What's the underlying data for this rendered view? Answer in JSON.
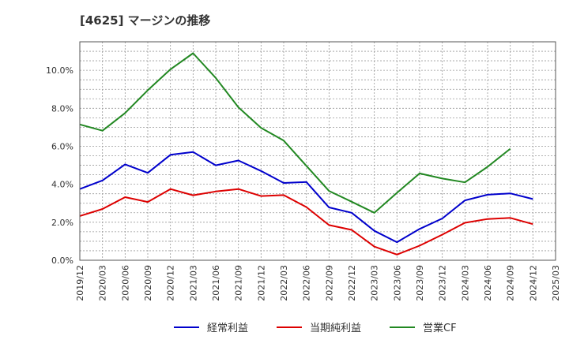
{
  "chart_data": {
    "type": "line",
    "title": "[4625]  マージンの推移",
    "xlabel": "",
    "ylabel": "",
    "ylim": [
      0,
      11.5
    ],
    "yticks": [
      0,
      2,
      4,
      6,
      8,
      10
    ],
    "ytick_labels": [
      "0.0%",
      "2.0%",
      "4.0%",
      "6.0%",
      "8.0%",
      "10.0%"
    ],
    "x": [
      "2019/12",
      "2020/03",
      "2020/06",
      "2020/09",
      "2020/12",
      "2021/03",
      "2021/06",
      "2021/09",
      "2021/12",
      "2022/03",
      "2022/06",
      "2022/09",
      "2022/12",
      "2023/03",
      "2023/06",
      "2023/09",
      "2023/12",
      "2024/03",
      "2024/06",
      "2024/09",
      "2024/12",
      "2025/03"
    ],
    "grid": true,
    "legend": "bottom",
    "series": [
      {
        "name": "経常利益",
        "color": "#0000cc",
        "values": [
          3.75,
          4.2,
          5.05,
          4.6,
          5.55,
          5.7,
          5.0,
          5.25,
          4.7,
          4.07,
          4.12,
          2.78,
          2.5,
          1.55,
          0.95,
          1.65,
          2.2,
          3.15,
          3.45,
          3.52,
          3.22,
          null
        ]
      },
      {
        "name": "当期純利益",
        "color": "#dd0000",
        "values": [
          2.33,
          2.7,
          3.32,
          3.07,
          3.75,
          3.42,
          3.62,
          3.75,
          3.38,
          3.43,
          2.8,
          1.85,
          1.6,
          0.72,
          0.3,
          0.77,
          1.35,
          1.97,
          2.17,
          2.23,
          1.9,
          null
        ]
      },
      {
        "name": "営業CF",
        "color": "#228822",
        "values": [
          7.15,
          6.82,
          7.75,
          8.95,
          10.05,
          10.9,
          9.6,
          8.05,
          6.97,
          6.3,
          4.97,
          3.65,
          3.08,
          2.5,
          3.55,
          4.57,
          4.3,
          4.1,
          4.92,
          5.87,
          null,
          null
        ]
      }
    ]
  }
}
